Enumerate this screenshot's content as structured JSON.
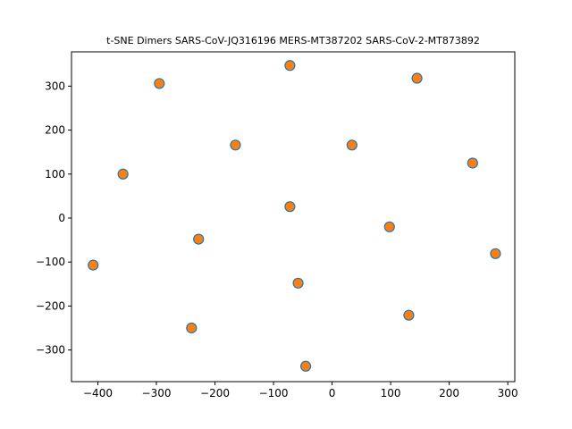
{
  "chart_data": {
    "type": "scatter",
    "title": "t-SNE Dimers SARS-CoV-JQ316196 MERS-MT387202 SARS-CoV-2-MT873892",
    "xlabel": "",
    "ylabel": "",
    "xlim": [
      -445,
      312
    ],
    "ylim": [
      -372,
      378
    ],
    "xticks": [
      -400,
      -300,
      -200,
      -100,
      0,
      100,
      200,
      300
    ],
    "yticks": [
      -300,
      -200,
      -100,
      0,
      100,
      200,
      300
    ],
    "xtick_labels": [
      "−400",
      "−300",
      "−200",
      "−100",
      "0",
      "100",
      "200",
      "300"
    ],
    "ytick_labels": [
      "−300",
      "−200",
      "−100",
      "0",
      "100",
      "200",
      "300"
    ],
    "grid": false,
    "marker_face_color": "#ff7f0e",
    "marker_edge_color": "#1f77b4",
    "points": [
      {
        "x": -72,
        "y": 347
      },
      {
        "x": 145,
        "y": 318
      },
      {
        "x": -295,
        "y": 306
      },
      {
        "x": -165,
        "y": 166
      },
      {
        "x": 34,
        "y": 166
      },
      {
        "x": 240,
        "y": 125
      },
      {
        "x": -357,
        "y": 100
      },
      {
        "x": -72,
        "y": 26
      },
      {
        "x": 98,
        "y": -20
      },
      {
        "x": -228,
        "y": -48
      },
      {
        "x": 279,
        "y": -81
      },
      {
        "x": -408,
        "y": -107
      },
      {
        "x": -58,
        "y": -148
      },
      {
        "x": 131,
        "y": -221
      },
      {
        "x": -240,
        "y": -250
      },
      {
        "x": -45,
        "y": -337
      }
    ]
  }
}
